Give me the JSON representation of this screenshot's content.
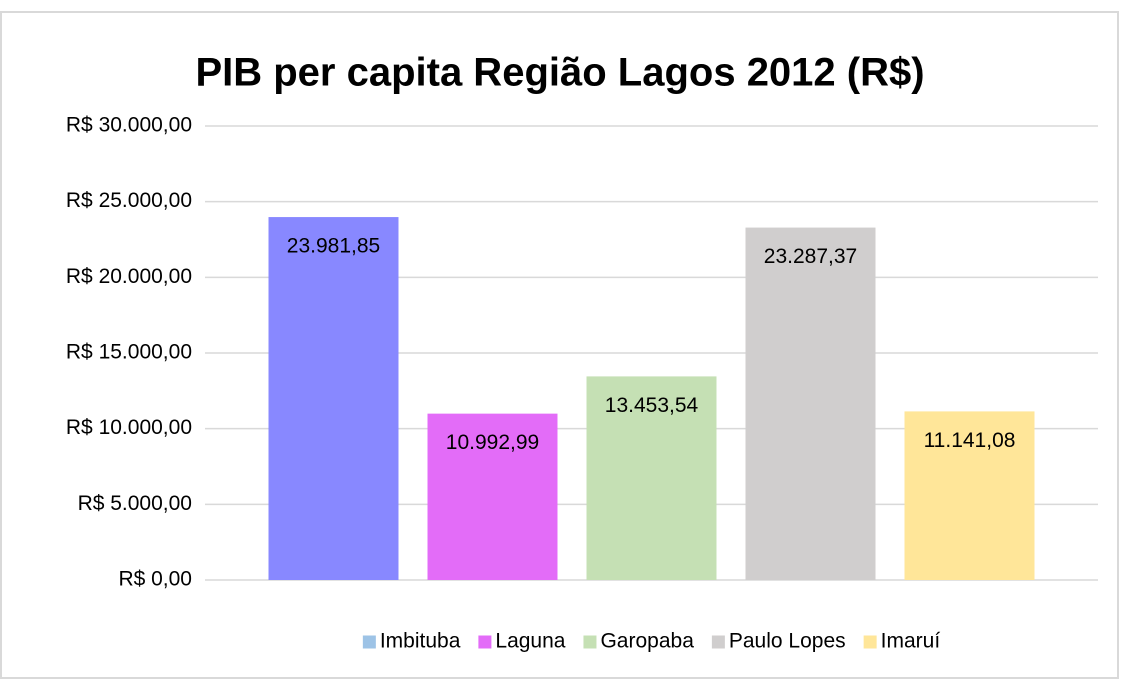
{
  "chart_data": {
    "type": "bar",
    "title": "PIB per capita Região Lagos 2012 (R$)",
    "series": [
      {
        "name": "Imbituba",
        "color": "#8888ff",
        "legend_color": "#9dc3e6",
        "values": [
          23981.85
        ],
        "value_labels": [
          "23.981,85"
        ]
      },
      {
        "name": "Laguna",
        "color": "#e36cf8",
        "legend_color": "#e36cf8",
        "values": [
          10992.99
        ],
        "value_labels": [
          "10.992,99"
        ]
      },
      {
        "name": "Garopaba",
        "color": "#c5e0b4",
        "legend_color": "#c5e0b4",
        "values": [
          13453.54
        ],
        "value_labels": [
          "13.453,54"
        ]
      },
      {
        "name": "Paulo Lopes",
        "color": "#d0cece",
        "legend_color": "#d0cece",
        "values": [
          23287.37
        ],
        "value_labels": [
          "23.287,37"
        ]
      },
      {
        "name": "Imaruí",
        "color": "#ffe699",
        "legend_color": "#ffe699",
        "values": [
          11141.08
        ],
        "value_labels": [
          "11.141,08"
        ]
      }
    ],
    "ylim": [
      0,
      30000
    ],
    "yticks": [
      {
        "value": 0,
        "label": "R$ 0,00"
      },
      {
        "value": 5000,
        "label": "R$ 5.000,00"
      },
      {
        "value": 10000,
        "label": "R$ 10.000,00"
      },
      {
        "value": 15000,
        "label": "R$ 15.000,00"
      },
      {
        "value": 20000,
        "label": "R$ 20.000,00"
      },
      {
        "value": 25000,
        "label": "R$ 25.000,00"
      },
      {
        "value": 30000,
        "label": "R$ 30.000,00"
      }
    ],
    "grid": true,
    "legend": "bottom"
  }
}
